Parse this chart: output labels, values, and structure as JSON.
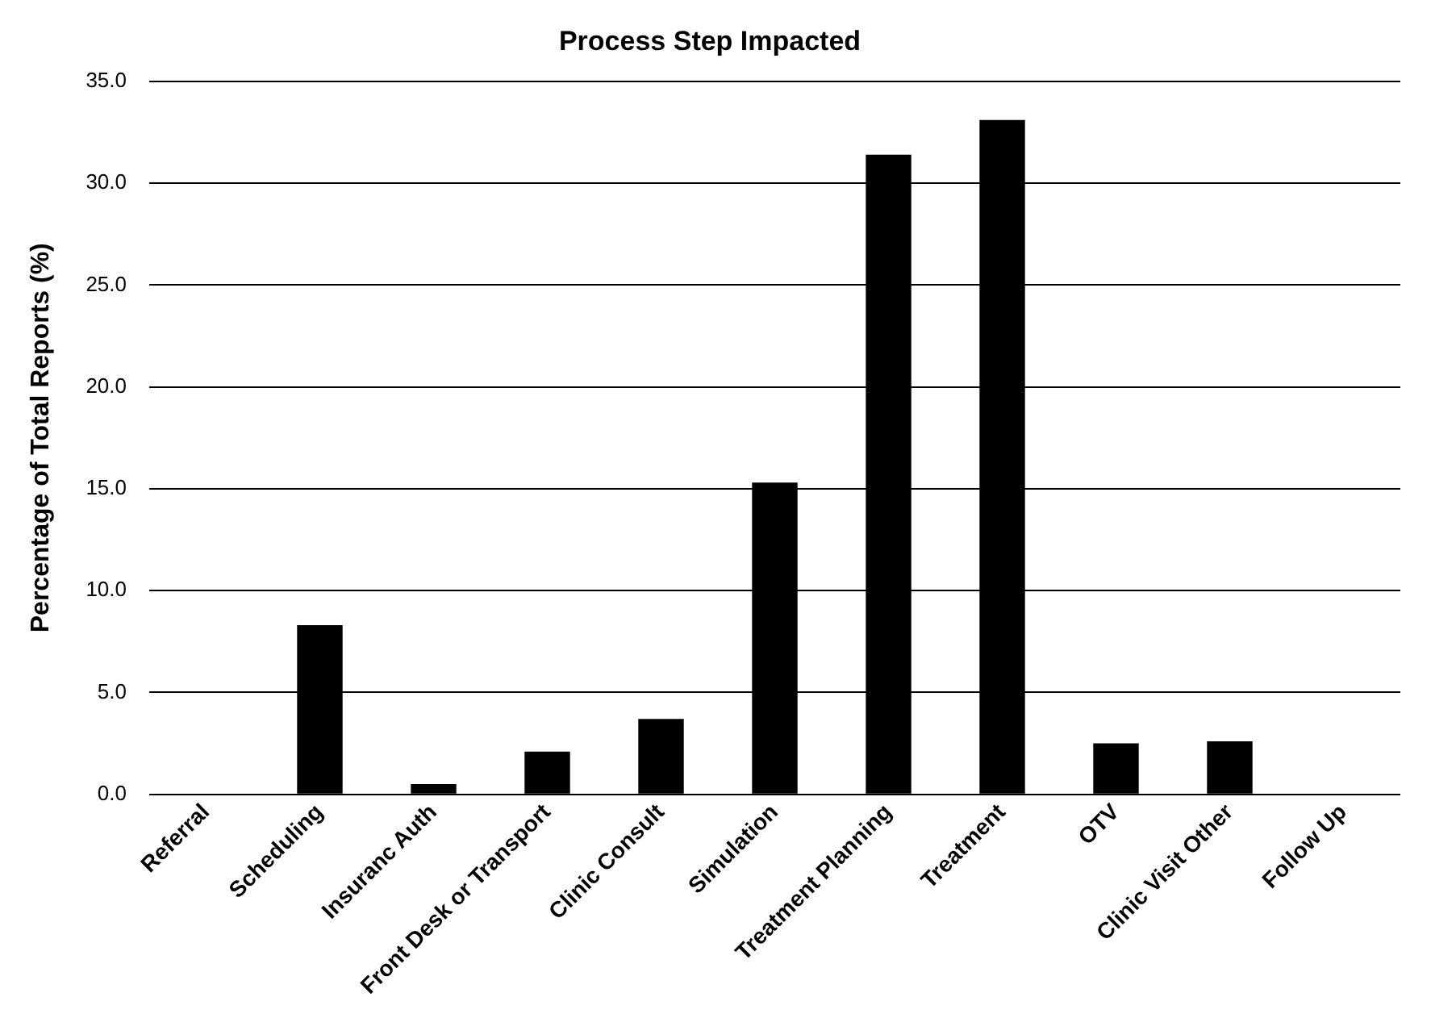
{
  "chart_data": {
    "type": "bar",
    "title": "Process Step Impacted",
    "ylabel": "Percentage of Total Reports (%)",
    "categories": [
      "Referral",
      "Scheduling",
      "Insuranc Auth",
      "Front Desk or Transport",
      "Clinic Consult",
      "Simulation",
      "Treatment Planning",
      "Treatment",
      "OTV",
      "Clinic Visit Other",
      "Follow Up"
    ],
    "values": [
      0,
      8.3,
      0.5,
      2.1,
      3.7,
      15.3,
      31.4,
      33.1,
      2.5,
      2.6,
      0
    ],
    "color": "#000000",
    "ylim": [
      0,
      35
    ],
    "yticks": [
      {
        "value": 0,
        "label": "0.0"
      },
      {
        "value": 5,
        "label": "5.0"
      },
      {
        "value": 10,
        "label": "10.0"
      },
      {
        "value": 15,
        "label": "15.0"
      },
      {
        "value": 20,
        "label": "20.0"
      },
      {
        "value": 25,
        "label": "25.0"
      },
      {
        "value": 30,
        "label": "30.0"
      },
      {
        "value": 35,
        "label": "35.0"
      }
    ],
    "grid": "y",
    "legend": false
  }
}
